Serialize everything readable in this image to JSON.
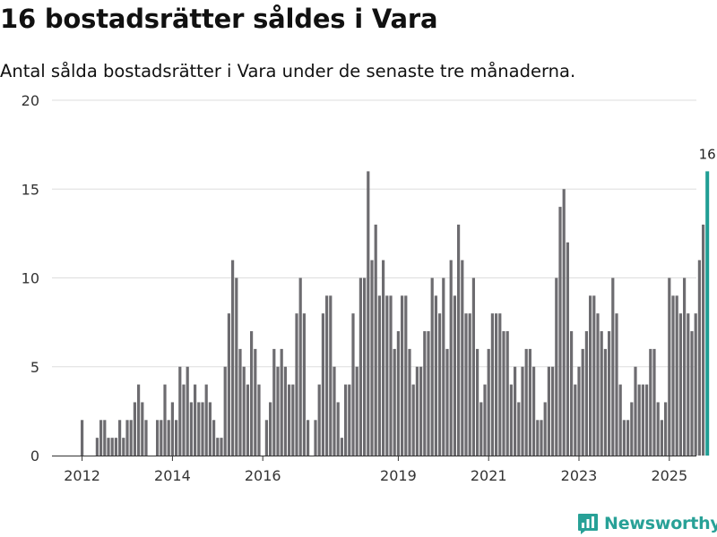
{
  "header": {
    "title": "16 bostadsrätter såldes i Vara",
    "subtitle": "Antal sålda bostadsrätter i Vara under de senaste tre månaderna."
  },
  "brand": {
    "name": "Newsworthy",
    "icon": "newsworthy-logo-icon"
  },
  "colors": {
    "bar": "#6d6c70",
    "highlight": "#1f9e94",
    "grid": "#dddddd",
    "axis": "#333333"
  },
  "chart_data": {
    "type": "bar",
    "title": "16 bostadsrätter såldes i Vara",
    "subtitle": "Antal sålda bostadsrätter i Vara under de senaste tre månaderna.",
    "xlabel": "",
    "ylabel": "",
    "ylim": [
      0,
      20
    ],
    "yticks": [
      0,
      5,
      10,
      15,
      20
    ],
    "grid": true,
    "x_start": "2012-01",
    "x_end": "2025-10",
    "x_ticks": [
      {
        "label": "2012",
        "index": 0
      },
      {
        "label": "2014",
        "index": 24
      },
      {
        "label": "2016",
        "index": 48
      },
      {
        "label": "2019",
        "index": 84
      },
      {
        "label": "2021",
        "index": 108
      },
      {
        "label": "2023",
        "index": 132
      },
      {
        "label": "2025",
        "index": 156
      }
    ],
    "values": [
      2,
      0,
      0,
      0,
      1,
      2,
      2,
      1,
      1,
      1,
      2,
      1,
      2,
      2,
      3,
      4,
      3,
      2,
      0,
      0,
      2,
      2,
      4,
      2,
      3,
      2,
      5,
      4,
      5,
      3,
      4,
      3,
      3,
      4,
      3,
      2,
      1,
      1,
      5,
      8,
      11,
      10,
      6,
      5,
      4,
      7,
      6,
      4,
      0,
      2,
      3,
      6,
      5,
      6,
      5,
      4,
      4,
      8,
      10,
      8,
      2,
      0,
      2,
      4,
      8,
      9,
      9,
      5,
      3,
      1,
      4,
      4,
      8,
      5,
      10,
      10,
      16,
      11,
      13,
      9,
      11,
      9,
      9,
      6,
      7,
      9,
      9,
      6,
      4,
      5,
      5,
      7,
      7,
      10,
      9,
      8,
      10,
      6,
      11,
      9,
      13,
      11,
      8,
      8,
      10,
      6,
      3,
      4,
      6,
      8,
      8,
      8,
      7,
      7,
      4,
      5,
      3,
      5,
      6,
      6,
      5,
      2,
      2,
      3,
      5,
      5,
      10,
      14,
      15,
      12,
      7,
      4,
      5,
      6,
      7,
      9,
      9,
      8,
      7,
      6,
      7,
      10,
      8,
      4,
      2,
      2,
      3,
      5,
      4,
      4,
      4,
      6,
      6,
      3,
      2,
      3,
      10,
      9,
      9,
      8,
      10,
      8,
      7,
      8,
      11,
      13,
      16
    ],
    "highlight_last": true,
    "annotation": "16"
  }
}
